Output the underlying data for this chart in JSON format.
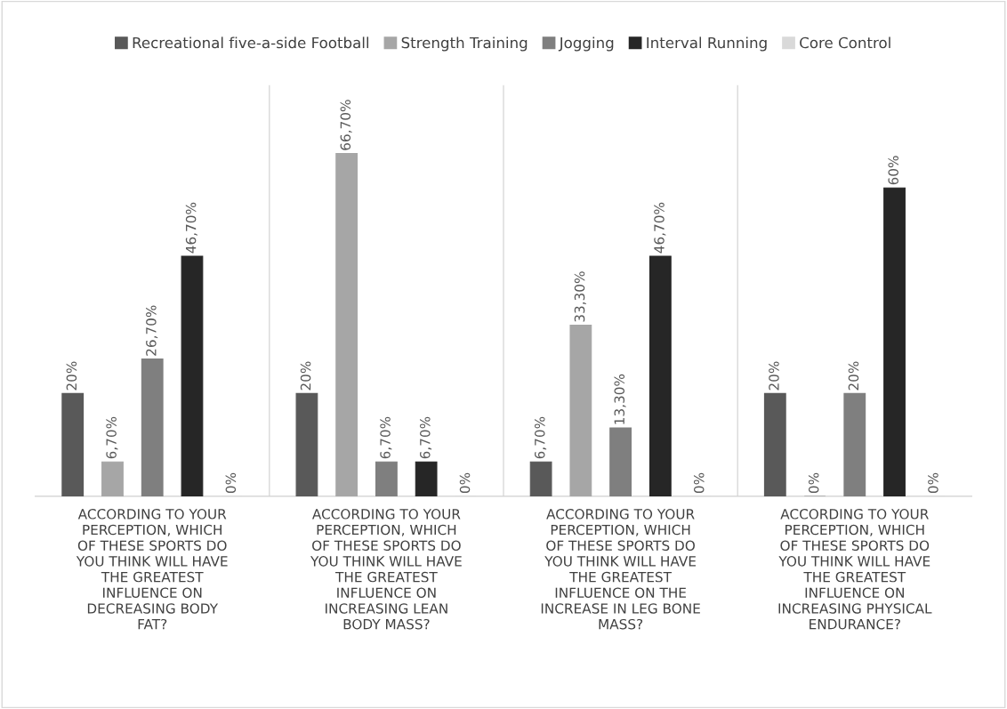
{
  "chart_data": {
    "type": "bar",
    "categories": [
      "ACCORDING TO YOUR\nPERCEPTION, WHICH\nOF THESE SPORTS DO\nYOU THINK WILL HAVE\nTHE GREATEST\nINFLUENCE ON\nDECREASING BODY\nFAT?",
      "ACCORDING TO YOUR\nPERCEPTION, WHICH\nOF THESE SPORTS DO\nYOU THINK WILL HAVE\nTHE GREATEST\nINFLUENCE ON\nINCREASING LEAN\nBODY MASS?",
      "ACCORDING TO YOUR\nPERCEPTION, WHICH\nOF THESE SPORTS DO\nYOU THINK WILL HAVE\nTHE GREATEST\nINFLUENCE ON THE\nINCREASE IN LEG BONE\nMASS?",
      "ACCORDING TO YOUR\nPERCEPTION, WHICH\nOF THESE SPORTS DO\nYOU THINK WILL HAVE\nTHE GREATEST\nINFLUENCE ON\nINCREASING PHYSICAL\nENDURANCE?"
    ],
    "series": [
      {
        "name": "Recreational five-a-side Football",
        "color": "#595959",
        "values": [
          20,
          20,
          6.7,
          20
        ],
        "value_labels": [
          "20%",
          "20%",
          "6,70%",
          "20%"
        ]
      },
      {
        "name": "Strength Training",
        "color": "#a6a6a6",
        "values": [
          6.7,
          66.7,
          33.3,
          0
        ],
        "value_labels": [
          "6,70%",
          "66,70%",
          "33,30%",
          "0%"
        ]
      },
      {
        "name": "Jogging",
        "color": "#7f7f7f",
        "values": [
          26.7,
          6.7,
          13.3,
          20
        ],
        "value_labels": [
          "26,70%",
          "6,70%",
          "13,30%",
          "20%"
        ]
      },
      {
        "name": "Interval Running",
        "color": "#262626",
        "values": [
          46.7,
          6.7,
          46.7,
          60
        ],
        "value_labels": [
          "46,70%",
          "6,70%",
          "46,70%",
          "60%"
        ]
      },
      {
        "name": "Core Control",
        "color": "#d9d9d9",
        "values": [
          0,
          0,
          0,
          0
        ],
        "value_labels": [
          "0%",
          "0%",
          "0%",
          "0%"
        ]
      }
    ],
    "ylim": [
      0,
      80
    ],
    "tick_labels": "x",
    "grid": false,
    "legend": "top"
  }
}
